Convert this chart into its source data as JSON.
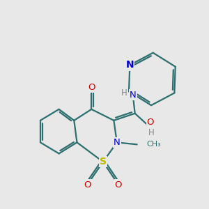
{
  "bg_color": "#e8e8e8",
  "bond_color": "#2d6e6e",
  "bond_width": 1.6,
  "atom_colors": {
    "N": "#0000cc",
    "O": "#cc0000",
    "S": "#bbbb00",
    "C": "#2d6e6e",
    "H": "#888888"
  },
  "figsize": [
    3.0,
    3.0
  ],
  "dpi": 100,
  "xlim": [
    0,
    10
  ],
  "ylim": [
    0,
    10
  ]
}
